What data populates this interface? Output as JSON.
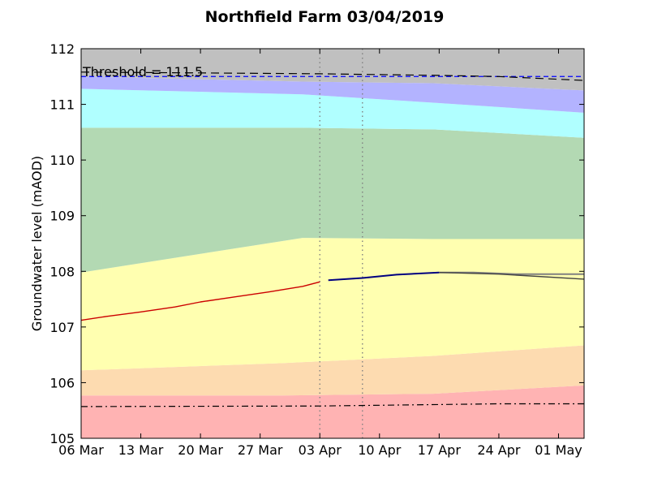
{
  "chart_data": {
    "type": "line",
    "title": "Northfield Farm 03/04/2019",
    "ylabel": "Groundwater level (mAOD)",
    "xlabel": "",
    "x_range": [
      "2019-03-06",
      "2019-05-04"
    ],
    "ylim": [
      105,
      112
    ],
    "yticks": [
      105,
      106,
      107,
      108,
      109,
      110,
      111,
      112
    ],
    "xticks": [
      {
        "date": "2019-03-06",
        "label": "06 Mar"
      },
      {
        "date": "2019-03-13",
        "label": "13 Mar"
      },
      {
        "date": "2019-03-20",
        "label": "20 Mar"
      },
      {
        "date": "2019-03-27",
        "label": "27 Mar"
      },
      {
        "date": "2019-04-03",
        "label": "03 Apr"
      },
      {
        "date": "2019-04-10",
        "label": "10 Apr"
      },
      {
        "date": "2019-04-17",
        "label": "17 Apr"
      },
      {
        "date": "2019-04-24",
        "label": "24 Apr"
      },
      {
        "date": "2019-05-01",
        "label": "01 May"
      }
    ],
    "grid": false,
    "bands": [
      {
        "color": "#ffb3b3",
        "lower": [
          [
            0,
            105
          ],
          [
            100,
            105
          ]
        ],
        "upper": [
          [
            0,
            105.77
          ],
          [
            40,
            105.77
          ],
          [
            70,
            105.8
          ],
          [
            100,
            105.95
          ]
        ]
      },
      {
        "color": "#fddbb0",
        "upper": [
          [
            0,
            106.22
          ],
          [
            40,
            106.35
          ],
          [
            70,
            106.48
          ],
          [
            100,
            106.67
          ]
        ]
      },
      {
        "color": "#ffffb0",
        "upper": [
          [
            0,
            107.98
          ],
          [
            44,
            108.6
          ],
          [
            70,
            108.58
          ],
          [
            100,
            108.58
          ]
        ]
      },
      {
        "color": "#b3d9b3",
        "upper": [
          [
            0,
            110.58
          ],
          [
            44,
            110.58
          ],
          [
            70,
            110.55
          ],
          [
            100,
            110.4
          ]
        ]
      },
      {
        "color": "#b0ffff",
        "upper": [
          [
            0,
            111.28
          ],
          [
            44,
            111.18
          ],
          [
            70,
            111.03
          ],
          [
            100,
            110.85
          ]
        ]
      },
      {
        "color": "#b3b3ff",
        "upper": [
          [
            0,
            111.5
          ],
          [
            44,
            111.41
          ],
          [
            70,
            111.38
          ],
          [
            100,
            111.25
          ]
        ]
      },
      {
        "color": "#c0c0c0",
        "upper": [
          [
            0,
            112
          ],
          [
            100,
            112
          ]
        ]
      }
    ],
    "threshold": {
      "value": 111.5,
      "label": "Threshold = 111.5",
      "color": "#0000ff"
    },
    "vlines": [
      "2019-04-03",
      "2019-04-08"
    ],
    "series": [
      {
        "color": "#cc0000",
        "width": 1.4,
        "dash": "",
        "points": [
          [
            "2019-03-06",
            107.12
          ],
          [
            "2019-03-09",
            107.19
          ],
          [
            "2019-03-13",
            107.27
          ],
          [
            "2019-03-17",
            107.36
          ],
          [
            "2019-03-20",
            107.45
          ],
          [
            "2019-03-24",
            107.54
          ],
          [
            "2019-03-28",
            107.63
          ],
          [
            "2019-04-01",
            107.73
          ],
          [
            "2019-04-03",
            107.81
          ]
        ]
      },
      {
        "color": "#000080",
        "width": 2,
        "dash": "",
        "points": [
          [
            "2019-04-04",
            107.84
          ],
          [
            "2019-04-08",
            107.88
          ],
          [
            "2019-04-12",
            107.94
          ],
          [
            "2019-04-17",
            107.98
          ]
        ]
      },
      {
        "color": "#808080",
        "width": 2,
        "dash": "",
        "points": [
          [
            "2019-04-17",
            107.98
          ],
          [
            "2019-04-21",
            107.98
          ],
          [
            "2019-04-26",
            107.95
          ],
          [
            "2019-05-04",
            107.95
          ]
        ]
      },
      {
        "color": "#444444",
        "width": 1.4,
        "dash": "",
        "points": [
          [
            "2019-04-17",
            107.98
          ],
          [
            "2019-04-24",
            107.95
          ],
          [
            "2019-05-04",
            107.86
          ]
        ]
      },
      {
        "color": "#000000",
        "width": 1.2,
        "dash": "10,6",
        "points": [
          [
            "2019-03-06",
            111.58
          ],
          [
            "2019-04-03",
            111.55
          ],
          [
            "2019-04-17",
            111.52
          ],
          [
            "2019-04-24",
            111.5
          ],
          [
            "2019-05-04",
            111.43
          ]
        ]
      },
      {
        "color": "#000000",
        "width": 1.2,
        "dash": "8,4,2,4",
        "points": [
          [
            "2019-03-06",
            105.57
          ],
          [
            "2019-04-03",
            105.58
          ],
          [
            "2019-04-24",
            105.62
          ],
          [
            "2019-05-04",
            105.62
          ]
        ]
      }
    ]
  }
}
